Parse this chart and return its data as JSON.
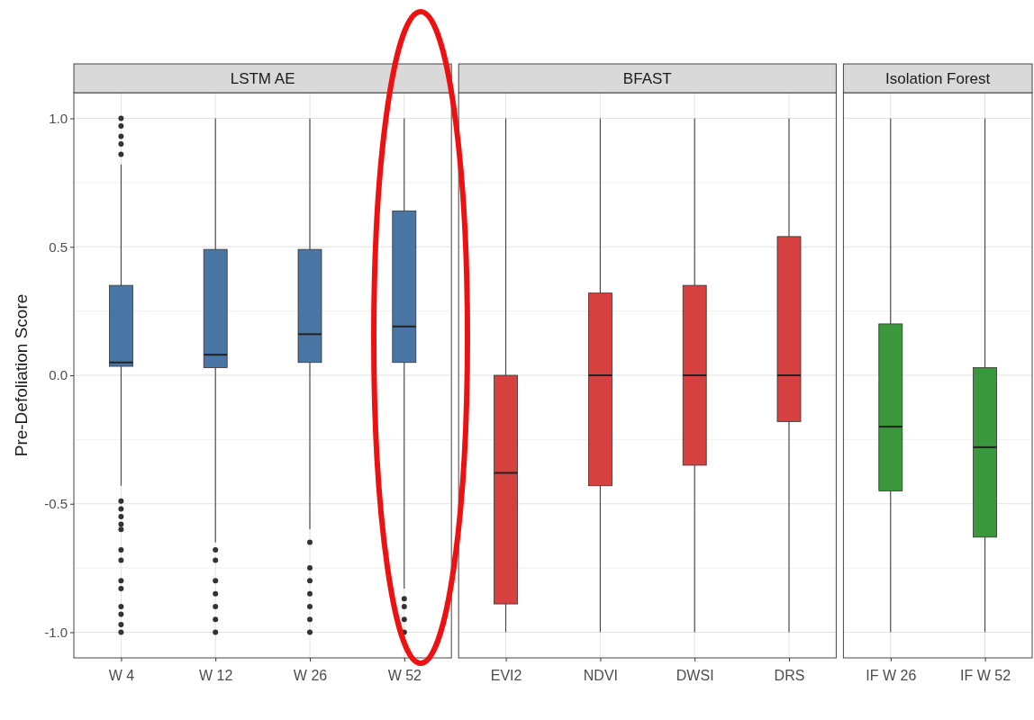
{
  "chart_data": [
    {
      "type": "box",
      "title": "LSTM AE",
      "ylabel": "Pre-Defoliation Score",
      "categories": [
        "W 4",
        "W 12",
        "W 26",
        "W 52"
      ],
      "ylim": [
        -1.1,
        1.1
      ],
      "yticks": [
        {
          "value": -1,
          "label": "-1.0"
        },
        {
          "value": -0.5,
          "label": "-0.5"
        },
        {
          "value": 0,
          "label": "0.0"
        },
        {
          "value": 0.5,
          "label": "0.5"
        },
        {
          "value": 1,
          "label": "1.0"
        }
      ],
      "grid": true,
      "series": [
        {
          "color": "#4a76a6",
          "boxes": [
            {
              "low": -0.43,
              "q1": 0.035,
              "median": 0.05,
              "q3": 0.35,
              "high": 0.82,
              "outliers": [
                1.0,
                0.97,
                0.93,
                0.9,
                0.86,
                -0.49,
                -0.52,
                -0.55,
                -0.58,
                -0.6,
                -0.68,
                -0.72,
                -0.8,
                -0.83,
                -0.9,
                -0.93,
                -0.97,
                -1.0
              ]
            },
            {
              "low": -0.65,
              "q1": 0.03,
              "median": 0.08,
              "q3": 0.49,
              "high": 1.0,
              "outliers": [
                -0.68,
                -0.72,
                -0.8,
                -0.85,
                -0.9,
                -0.95,
                -1.0
              ]
            },
            {
              "low": -0.6,
              "q1": 0.05,
              "median": 0.16,
              "q3": 0.49,
              "high": 1.0,
              "outliers": [
                -0.65,
                -0.75,
                -0.8,
                -0.85,
                -0.9,
                -0.95,
                -1.0
              ]
            },
            {
              "low": -0.83,
              "q1": 0.05,
              "median": 0.19,
              "q3": 0.64,
              "high": 1.0,
              "outliers": [
                -0.87,
                -0.9,
                -0.95,
                -1.0
              ]
            }
          ]
        }
      ]
    },
    {
      "type": "box",
      "title": "BFAST",
      "categories": [
        "EVI2",
        "NDVI",
        "DWSI",
        "DRS"
      ],
      "ylim": [
        -1.1,
        1.1
      ],
      "yticks": [
        -1,
        -0.5,
        0,
        0.5,
        1
      ],
      "grid": true,
      "tick_labels": "x",
      "series": [
        {
          "color": "#d6403e",
          "boxes": [
            {
              "low": -1.0,
              "q1": -0.89,
              "median": -0.38,
              "q3": 0.0,
              "high": 1.0
            },
            {
              "low": -1.0,
              "q1": -0.43,
              "median": 0.0,
              "q3": 0.32,
              "high": 1.0
            },
            {
              "low": -1.0,
              "q1": -0.35,
              "median": 0.0,
              "q3": 0.35,
              "high": 1.0
            },
            {
              "low": -1.0,
              "q1": -0.18,
              "median": 0.0,
              "q3": 0.54,
              "high": 1.0
            }
          ]
        }
      ]
    },
    {
      "type": "box",
      "title": "Isolation Forest",
      "categories": [
        "IF W 26",
        "IF W 52"
      ],
      "ylim": [
        -1.1,
        1.1
      ],
      "yticks": [
        -1,
        -0.5,
        0,
        0.5,
        1
      ],
      "grid": true,
      "tick_labels": "x",
      "series": [
        {
          "color": "#3b973b",
          "boxes": [
            {
              "low": -1.0,
              "q1": -0.45,
              "median": -0.2,
              "q3": 0.2,
              "high": 1.0
            },
            {
              "low": -1.0,
              "q1": -0.63,
              "median": -0.28,
              "q3": 0.03,
              "high": 1.0
            }
          ]
        }
      ]
    }
  ]
}
